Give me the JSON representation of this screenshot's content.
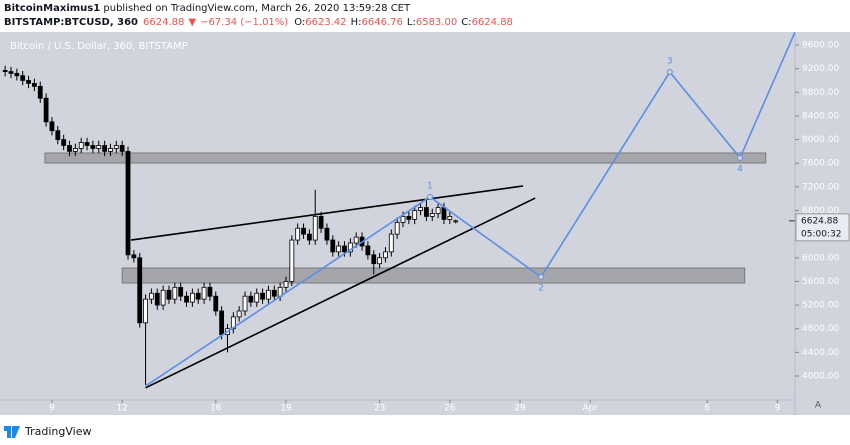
{
  "header": {
    "author": "BitcoinMaximus1",
    "published": " published on TradingView.com, March 26, 2020 13:59:28 CET",
    "symbol": "BITSTAMP:BTCUSD, 360",
    "last": "6624.88",
    "arrow": "▼",
    "change": "−67.34 (−1.01%)",
    "ohlc": [
      {
        "k": "O:",
        "v": "6623.42"
      },
      {
        "k": "H:",
        "v": "6646.76"
      },
      {
        "k": "L:",
        "v": "6583.00"
      },
      {
        "k": "C:",
        "v": "6624.88"
      }
    ]
  },
  "chart_data": {
    "type": "candlestick",
    "title": "Bitcoin / U.S. Dollar, 360, BITSTAMP",
    "up_color": "#ffffff",
    "down_color": "#000000",
    "outline": "#000000",
    "x": [
      7,
      7.25,
      7.5,
      7.75,
      8,
      8.25,
      8.5,
      8.75,
      9,
      9.25,
      9.5,
      9.75,
      10,
      10.25,
      10.5,
      10.75,
      11,
      11.25,
      11.5,
      11.75,
      12,
      12.25,
      12.5,
      12.75,
      13,
      13.25,
      13.5,
      13.75,
      14,
      14.25,
      14.5,
      14.75,
      15,
      15.25,
      15.5,
      15.75,
      16,
      16.25,
      16.5,
      16.75,
      17,
      17.25,
      17.5,
      17.75,
      18,
      18.25,
      18.5,
      18.75,
      19,
      19.25,
      19.5,
      19.75,
      20,
      20.25,
      20.5,
      20.75,
      21,
      21.25,
      21.5,
      21.75,
      22,
      22.25,
      22.5,
      22.75,
      23,
      23.25,
      23.5,
      23.75,
      24,
      24.25,
      24.5,
      24.75,
      25,
      25.25,
      25.5,
      25.75,
      26,
      26.25
    ],
    "open": [
      9170,
      9150,
      9120,
      9080,
      9000,
      8950,
      8900,
      8700,
      8300,
      8150,
      8000,
      7900,
      7800,
      7850,
      7950,
      7900,
      7850,
      7900,
      7800,
      7850,
      7900,
      7800,
      6050,
      6000,
      4900,
      5300,
      5400,
      5200,
      5450,
      5300,
      5500,
      5350,
      5250,
      5400,
      5300,
      5500,
      5350,
      5100,
      4700,
      4800,
      5000,
      5100,
      5350,
      5250,
      5400,
      5300,
      5450,
      5350,
      5500,
      5600,
      6300,
      6500,
      6400,
      6300,
      6700,
      6500,
      6300,
      6100,
      6200,
      6100,
      6250,
      6350,
      6200,
      6050,
      5900,
      6000,
      6100,
      6400,
      6600,
      6700,
      6650,
      6800,
      6850,
      6700,
      6750,
      6850,
      6650,
      6623.42
    ],
    "high": [
      9250,
      9230,
      9200,
      9160,
      9080,
      9030,
      8980,
      8780,
      8380,
      8230,
      8080,
      7980,
      7930,
      8030,
      8030,
      7980,
      7980,
      7980,
      7930,
      7980,
      7980,
      7880,
      6130,
      6080,
      5380,
      5480,
      5480,
      5530,
      5530,
      5580,
      5580,
      5430,
      5480,
      5480,
      5580,
      5580,
      5430,
      5180,
      4880,
      5080,
      5180,
      5430,
      5430,
      5480,
      5480,
      5530,
      5530,
      5580,
      5680,
      6380,
      6580,
      6580,
      6480,
      7150,
      6780,
      6580,
      6380,
      6280,
      6280,
      6330,
      6430,
      6430,
      6280,
      6130,
      6080,
      6180,
      6480,
      6680,
      6780,
      6780,
      6880,
      6930,
      6980,
      6830,
      6930,
      6930,
      6780,
      6646.76
    ],
    "low": [
      9070,
      9040,
      9000,
      8920,
      8870,
      8820,
      8620,
      8220,
      8070,
      7920,
      7820,
      7720,
      7720,
      7770,
      7820,
      7770,
      7770,
      7720,
      7720,
      7770,
      7720,
      5970,
      5920,
      4820,
      3850,
      5220,
      5120,
      5120,
      5220,
      5220,
      5270,
      5170,
      5170,
      5220,
      5220,
      5270,
      5020,
      4620,
      4400,
      4720,
      4920,
      5020,
      5170,
      5170,
      5220,
      5220,
      5270,
      5270,
      5420,
      5520,
      6220,
      6320,
      6220,
      6220,
      6420,
      6220,
      6020,
      6020,
      6020,
      6020,
      6170,
      6120,
      5970,
      5720,
      5820,
      5920,
      6020,
      6320,
      6520,
      6570,
      6570,
      6720,
      6620,
      6620,
      6670,
      6570,
      6570,
      6583
    ],
    "close": [
      9150,
      9120,
      9080,
      9000,
      8950,
      8900,
      8700,
      8300,
      8150,
      8000,
      7900,
      7800,
      7850,
      7950,
      7900,
      7850,
      7900,
      7800,
      7850,
      7900,
      7800,
      6050,
      6000,
      4900,
      5300,
      5400,
      5200,
      5450,
      5300,
      5500,
      5350,
      5250,
      5400,
      5300,
      5500,
      5350,
      5100,
      4700,
      4800,
      5000,
      5100,
      5350,
      5250,
      5400,
      5300,
      5450,
      5350,
      5500,
      5600,
      6300,
      6500,
      6400,
      6300,
      6700,
      6500,
      6300,
      6100,
      6200,
      6100,
      6250,
      6350,
      6200,
      6050,
      5900,
      6000,
      6100,
      6400,
      6600,
      6700,
      6650,
      6800,
      6850,
      6700,
      6750,
      6850,
      6650,
      6700,
      6624.88
    ],
    "xlim": [
      6.78,
      40.75
    ],
    "ylim": [
      3594,
      9820
    ],
    "xticks": [
      9,
      12,
      16,
      19,
      23,
      26,
      29,
      {
        "value": 32,
        "label": "Apr"
      },
      {
        "value": 37,
        "label": "6"
      },
      {
        "value": 40,
        "label": "9"
      }
    ],
    "yticks": [
      {
        "value": 4000,
        "label": "4000.00"
      },
      {
        "value": 4400,
        "label": "4400.00"
      },
      {
        "value": 4800,
        "label": "4800.00"
      },
      {
        "value": 5200,
        "label": "5200.00"
      },
      {
        "value": 5600,
        "label": "5600.00"
      },
      {
        "value": 6000,
        "label": "6000.00"
      },
      {
        "value": 6400,
        "label": "6400.00"
      },
      {
        "value": 6800,
        "label": "6800.00"
      },
      {
        "value": 7200,
        "label": "7200.00"
      },
      {
        "value": 7600,
        "label": "7600.00"
      },
      {
        "value": 8000,
        "label": "8000.00"
      },
      {
        "value": 8400,
        "label": "8400.00"
      },
      {
        "value": 8800,
        "label": "8800.00"
      },
      {
        "value": 9200,
        "label": "9200.00"
      },
      {
        "value": 9600,
        "label": "9600.00"
      }
    ],
    "zones": [
      {
        "x": [
          8.7,
          39.5
        ],
        "range": [
          7604,
          7773
        ]
      },
      {
        "x": [
          12.0,
          38.6
        ],
        "range": [
          5573,
          5827
        ]
      }
    ],
    "trendlines": [
      {
        "x": [
          12.38,
          29.13
        ],
        "values": [
          6300,
          7215
        ]
      },
      {
        "x": [
          13.0,
          29.65
        ],
        "values": [
          3800,
          7010
        ]
      }
    ],
    "wave": {
      "color": "#5b8ee6",
      "x": [
        13.0,
        25.15,
        29.9,
        35.4,
        38.4,
        40.75
      ],
      "values": [
        3830,
        7030,
        5675,
        9143,
        7690,
        9820
      ],
      "labels": [
        null,
        "1",
        "2",
        "3",
        "4",
        null
      ]
    },
    "last_label": "6624.88",
    "countdown": "05:00:32",
    "scale_button": "A"
  },
  "footer": {
    "brand": "TradingView"
  }
}
